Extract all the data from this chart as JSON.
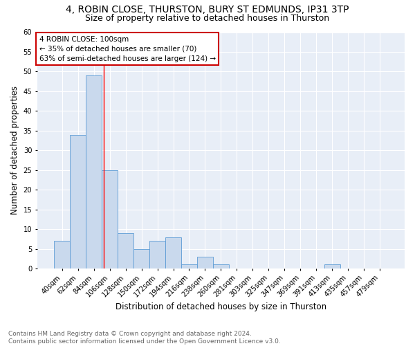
{
  "title1": "4, ROBIN CLOSE, THURSTON, BURY ST EDMUNDS, IP31 3TP",
  "title2": "Size of property relative to detached houses in Thurston",
  "xlabel": "Distribution of detached houses by size in Thurston",
  "ylabel": "Number of detached properties",
  "categories": [
    "40sqm",
    "62sqm",
    "84sqm",
    "106sqm",
    "128sqm",
    "150sqm",
    "172sqm",
    "194sqm",
    "216sqm",
    "238sqm",
    "260sqm",
    "281sqm",
    "303sqm",
    "325sqm",
    "347sqm",
    "369sqm",
    "391sqm",
    "413sqm",
    "435sqm",
    "457sqm",
    "479sqm"
  ],
  "values": [
    7,
    34,
    49,
    25,
    9,
    5,
    7,
    8,
    1,
    3,
    1,
    0,
    0,
    0,
    0,
    0,
    0,
    1,
    0,
    0,
    0
  ],
  "bar_color": "#c9d9ed",
  "bar_edge_color": "#5b9bd5",
  "ylim": [
    0,
    60
  ],
  "yticks": [
    0,
    5,
    10,
    15,
    20,
    25,
    30,
    35,
    40,
    45,
    50,
    55,
    60
  ],
  "red_line_x": 2.62,
  "annotation_line1": "4 ROBIN CLOSE: 100sqm",
  "annotation_line2": "← 35% of detached houses are smaller (70)",
  "annotation_line3": "63% of semi-detached houses are larger (124) →",
  "annotation_box_color": "#ffffff",
  "annotation_box_edge": "#cc0000",
  "footer_text": "Contains HM Land Registry data © Crown copyright and database right 2024.\nContains public sector information licensed under the Open Government Licence v3.0.",
  "background_color": "#e8eef7",
  "grid_color": "#ffffff",
  "title1_fontsize": 10,
  "title2_fontsize": 9,
  "xlabel_fontsize": 8.5,
  "ylabel_fontsize": 8.5,
  "footer_fontsize": 6.5,
  "tick_fontsize": 7.2
}
